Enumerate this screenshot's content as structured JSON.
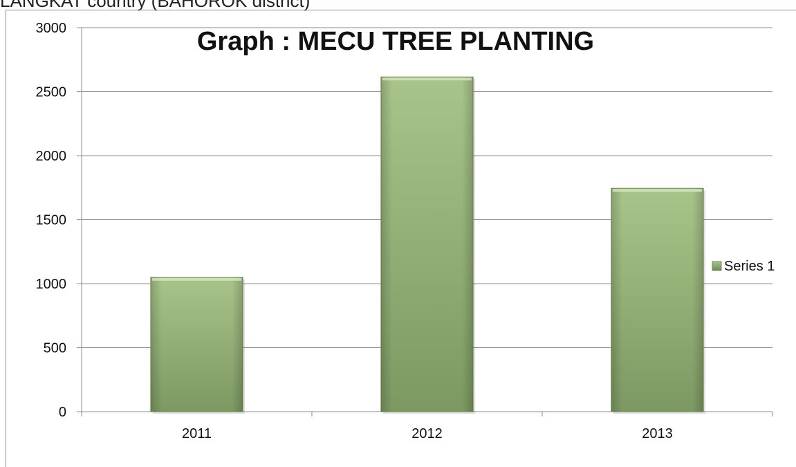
{
  "caption": "LANGKAT country (BAHOROK district)",
  "chart_data": {
    "type": "bar",
    "title": "Graph : MECU TREE PLANTING",
    "categories": [
      "2011",
      "2012",
      "2013"
    ],
    "series": [
      {
        "name": "Series 1",
        "values": [
          1050,
          2615,
          1745
        ]
      }
    ],
    "ylim": [
      0,
      3000
    ],
    "yticks": [
      0,
      500,
      1000,
      1500,
      2000,
      2500,
      3000
    ],
    "grid": true,
    "legend_position": "right",
    "colors": {
      "bar_light": "#a6c187",
      "bar_dark": "#7a9660",
      "bar_edge": "#6f8a55",
      "grid": "#8c8c8c"
    }
  }
}
